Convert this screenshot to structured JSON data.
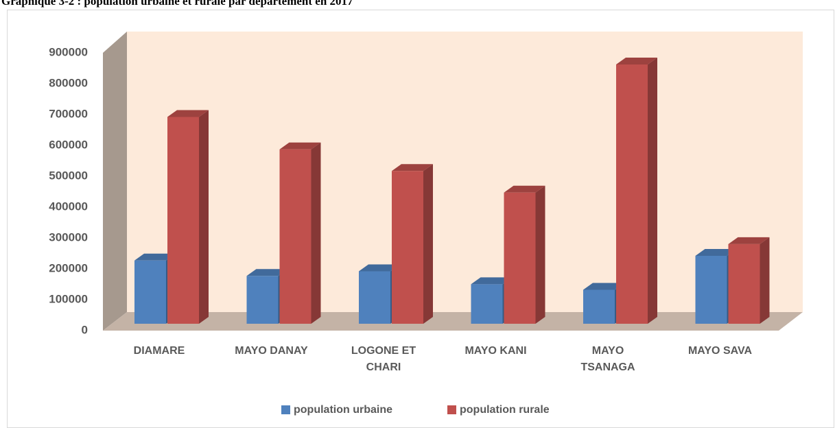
{
  "chart_data": {
    "type": "bar3d",
    "title": "Graphique 3-2 : population urbaine et rurale par département en 2017",
    "categories": [
      "DIAMARE",
      "MAYO DANAY",
      "LOGONE ET CHARI",
      "MAYO KANI",
      "MAYO TSANAGA",
      "MAYO SAVA"
    ],
    "series": [
      {
        "name": "population urbaine",
        "color": "#4f81bd",
        "values": [
          205000,
          155000,
          170000,
          128000,
          110000,
          220000
        ]
      },
      {
        "name": "population rurale",
        "color": "#c0504d",
        "values": [
          670000,
          565000,
          495000,
          425000,
          840000,
          258000
        ]
      }
    ],
    "ylim": [
      0,
      900000
    ],
    "yticks": [
      0,
      100000,
      200000,
      300000,
      400000,
      500000,
      600000,
      700000,
      800000,
      900000
    ],
    "legend": "bottom"
  }
}
